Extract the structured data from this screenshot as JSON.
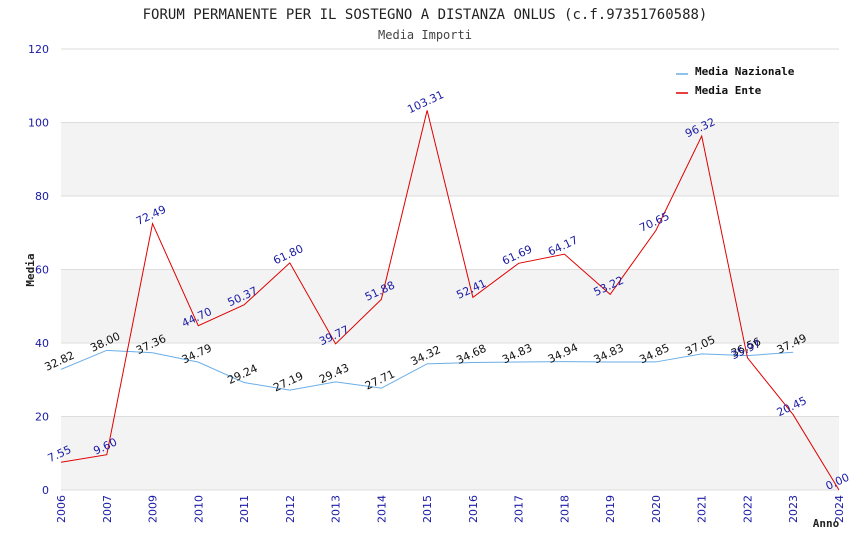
{
  "colors": {
    "national": "#6aaee8",
    "ente": "#e00000",
    "band": "#f3f3f3",
    "grid": "#dddddd",
    "tick": "#1a1aa6"
  },
  "chart_data": {
    "type": "line",
    "title": "FORUM PERMANENTE PER IL SOSTEGNO A DISTANZA ONLUS (c.f.97351760588)",
    "subtitle": "Media Importi",
    "xlabel": "Anno",
    "ylabel": "Media",
    "ylim": [
      0,
      120
    ],
    "yticks": [
      0,
      20,
      40,
      60,
      80,
      100,
      120
    ],
    "categories": [
      "2006",
      "2007",
      "2009",
      "2010",
      "2011",
      "2012",
      "2013",
      "2014",
      "2015",
      "2016",
      "2017",
      "2018",
      "2019",
      "2020",
      "2021",
      "2022",
      "2023",
      "2024"
    ],
    "legend_position": "top-right",
    "series": [
      {
        "name": "Media Nazionale",
        "key": "national",
        "values": [
          32.82,
          38.0,
          37.36,
          34.79,
          29.24,
          27.19,
          29.43,
          27.71,
          34.32,
          34.68,
          34.83,
          34.94,
          34.83,
          34.85,
          37.05,
          36.56,
          37.49,
          null
        ],
        "labels": [
          "32.82",
          "38.00",
          "37.36",
          "34.79",
          "29.24",
          "27.19",
          "29.43",
          "27.71",
          "34.32",
          "34.68",
          "34.83",
          "34.94",
          "34.83",
          "34.85",
          "37.05",
          "36.56",
          "37.49",
          null
        ]
      },
      {
        "name": "Media Ente",
        "key": "ente",
        "values": [
          7.55,
          9.6,
          72.49,
          44.7,
          50.37,
          61.8,
          39.77,
          51.88,
          103.31,
          52.41,
          61.69,
          64.17,
          53.22,
          70.65,
          96.32,
          35.97,
          20.45,
          0.0
        ],
        "labels": [
          "7.55",
          "9.60",
          "72.49",
          "44.70",
          "50.37",
          "61.80",
          "39.77",
          "51.88",
          "103.31",
          "52.41",
          "61.69",
          "64.17",
          "53.22",
          "70.65",
          "96.32",
          "35.97",
          "20.45",
          "0.00"
        ]
      }
    ]
  }
}
